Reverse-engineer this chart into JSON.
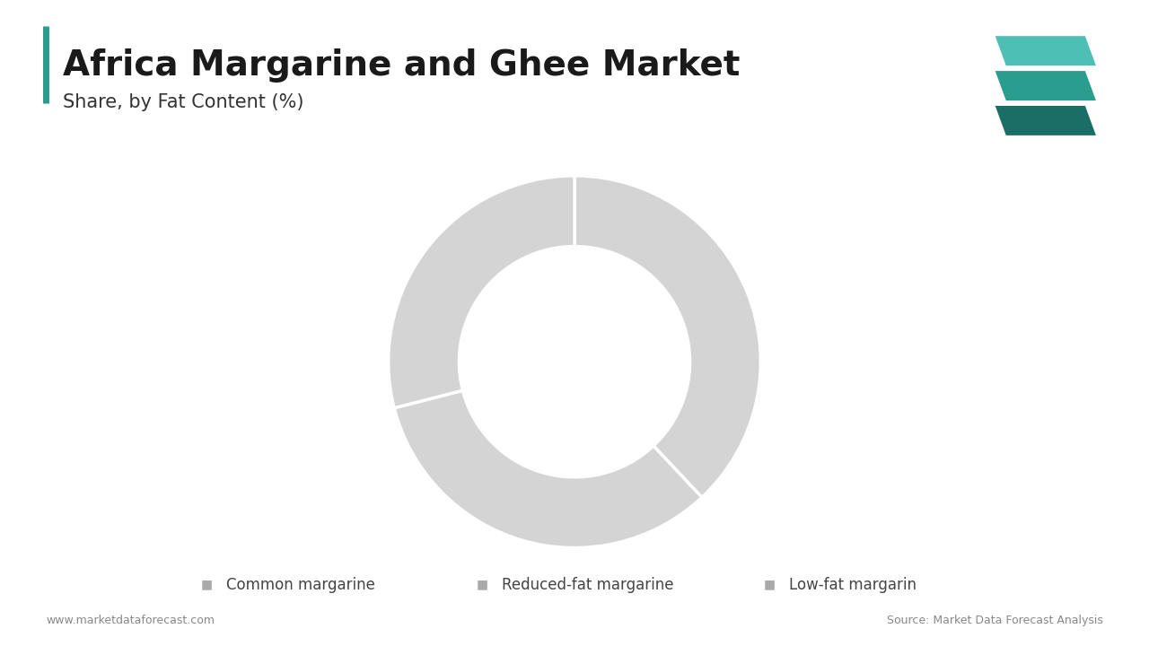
{
  "title": "Africa Margarine and Ghee Market",
  "subtitle": "Share, by Fat Content (%)",
  "segments": [
    "Common margarine",
    "Reduced-fat margarine",
    "Low-fat margarin"
  ],
  "values": [
    38,
    33,
    29
  ],
  "colors": [
    "#d4d4d4",
    "#d4d4d4",
    "#d4d4d4"
  ],
  "donut_width": 0.38,
  "accent_color": "#2a9d8f",
  "background_color": "#ffffff",
  "title_fontsize": 28,
  "subtitle_fontsize": 15,
  "legend_fontsize": 12,
  "footer_left": "www.marketdataforecast.com",
  "footer_right": "Source: Market Data Forecast Analysis",
  "footer_fontsize": 9,
  "logo_colors": [
    "#1a6e65",
    "#2a9d8f",
    "#4dbfb5"
  ]
}
